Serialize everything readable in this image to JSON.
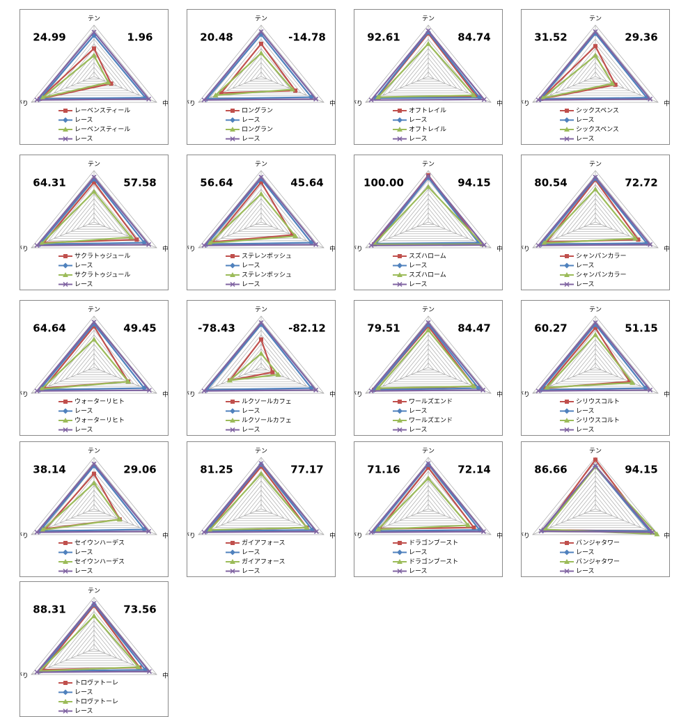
{
  "chart_data": [
    {
      "type": "radar",
      "annotations": [
        "24.99",
        "1.96"
      ],
      "categories": [
        "テン",
        "中盤",
        "上がり"
      ],
      "ylim": [
        0,
        110
      ],
      "yticks": [
        10,
        20,
        30,
        40,
        50,
        60,
        70,
        80,
        90,
        100,
        110
      ],
      "series": [
        {
          "name": "レーベンスティール",
          "color": "#c0504d",
          "marker": "square",
          "values": [
            60,
            30,
            95
          ]
        },
        {
          "name": "レース",
          "color": "#4f81bd",
          "marker": "diamond",
          "values": [
            88,
            90,
            95
          ]
        },
        {
          "name": "レーベンスティール",
          "color": "#9bbb59",
          "marker": "triangle",
          "values": [
            45,
            25,
            90
          ]
        },
        {
          "name": "レース",
          "color": "#8064a2",
          "marker": "x",
          "values": [
            95,
            96,
            100
          ]
        }
      ]
    },
    {
      "type": "radar",
      "annotations": [
        "20.48",
        "-14.78"
      ],
      "categories": [
        "テン",
        "中盤",
        "上がり"
      ],
      "ylim": [
        0,
        110
      ],
      "yticks": [
        10,
        20,
        30,
        40,
        50,
        60,
        70,
        80,
        90,
        100,
        110
      ],
      "series": [
        {
          "name": "ロングラン",
          "color": "#c0504d",
          "marker": "square",
          "values": [
            70,
            60,
            70
          ]
        },
        {
          "name": "レース",
          "color": "#4f81bd",
          "marker": "diamond",
          "values": [
            90,
            88,
            95
          ]
        },
        {
          "name": "ロングラン",
          "color": "#9bbb59",
          "marker": "triangle",
          "values": [
            50,
            55,
            80
          ]
        },
        {
          "name": "レース",
          "color": "#8064a2",
          "marker": "x",
          "values": [
            96,
            96,
            100
          ]
        }
      ]
    },
    {
      "type": "radar",
      "annotations": [
        "92.61",
        "84.74"
      ],
      "categories": [
        "テン",
        "中盤",
        "上がり"
      ],
      "ylim": [
        0,
        110
      ],
      "yticks": [
        10,
        20,
        30,
        40,
        50,
        60,
        70,
        80,
        90,
        100,
        110
      ],
      "series": [
        {
          "name": "オフトレイル",
          "color": "#c0504d",
          "marker": "square",
          "values": [
            92,
            85,
            90
          ]
        },
        {
          "name": "レース",
          "color": "#4f81bd",
          "marker": "diamond",
          "values": [
            95,
            90,
            92
          ]
        },
        {
          "name": "オフトレイル",
          "color": "#9bbb59",
          "marker": "triangle",
          "values": [
            70,
            80,
            88
          ]
        },
        {
          "name": "レース",
          "color": "#8064a2",
          "marker": "x",
          "values": [
            98,
            98,
            100
          ]
        }
      ]
    },
    {
      "type": "radar",
      "annotations": [
        "31.52",
        "29.36"
      ],
      "categories": [
        "テン",
        "中盤",
        "上がり"
      ],
      "ylim": [
        0,
        110
      ],
      "yticks": [
        10,
        20,
        30,
        40,
        50,
        60,
        70,
        80,
        90,
        100,
        110
      ],
      "series": [
        {
          "name": "シックスペンス",
          "color": "#c0504d",
          "marker": "square",
          "values": [
            65,
            35,
            95
          ]
        },
        {
          "name": "レース",
          "color": "#4f81bd",
          "marker": "diamond",
          "values": [
            92,
            90,
            96
          ]
        },
        {
          "name": "シックスペンス",
          "color": "#9bbb59",
          "marker": "triangle",
          "values": [
            45,
            30,
            92
          ]
        },
        {
          "name": "レース",
          "color": "#8064a2",
          "marker": "x",
          "values": [
            96,
            96,
            100
          ]
        }
      ]
    },
    {
      "type": "radar",
      "annotations": [
        "64.31",
        "57.58"
      ],
      "categories": [
        "テン",
        "中盤",
        "上がり"
      ],
      "ylim": [
        0,
        110
      ],
      "yticks": [
        10,
        20,
        30,
        40,
        50,
        60,
        70,
        80,
        90,
        100,
        110
      ],
      "series": [
        {
          "name": "サクラトゥジュール",
          "color": "#c0504d",
          "marker": "square",
          "values": [
            85,
            75,
            88
          ]
        },
        {
          "name": "レース",
          "color": "#4f81bd",
          "marker": "diamond",
          "values": [
            92,
            88,
            95
          ]
        },
        {
          "name": "サクラトゥジュール",
          "color": "#9bbb59",
          "marker": "triangle",
          "values": [
            65,
            65,
            92
          ]
        },
        {
          "name": "レース",
          "color": "#8064a2",
          "marker": "x",
          "values": [
            96,
            96,
            100
          ]
        }
      ]
    },
    {
      "type": "radar",
      "annotations": [
        "56.64",
        "45.64"
      ],
      "categories": [
        "テン",
        "中盤",
        "上がり"
      ],
      "ylim": [
        0,
        110
      ],
      "yticks": [
        10,
        20,
        30,
        40,
        50,
        60,
        70,
        80,
        90,
        100,
        110
      ],
      "series": [
        {
          "name": "ステレンボッシュ",
          "color": "#c0504d",
          "marker": "square",
          "values": [
            85,
            55,
            85
          ]
        },
        {
          "name": "レース",
          "color": "#4f81bd",
          "marker": "diamond",
          "values": [
            92,
            88,
            95
          ]
        },
        {
          "name": "ステレンボッシュ",
          "color": "#9bbb59",
          "marker": "triangle",
          "values": [
            60,
            60,
            90
          ]
        },
        {
          "name": "レース",
          "color": "#8064a2",
          "marker": "x",
          "values": [
            96,
            96,
            100
          ]
        }
      ]
    },
    {
      "type": "radar",
      "annotations": [
        "100.00",
        "94.15"
      ],
      "categories": [
        "テン",
        "中盤",
        "上がり"
      ],
      "ylim": [
        0,
        110
      ],
      "yticks": [
        10,
        20,
        30,
        40,
        50,
        60,
        70,
        80,
        90,
        100,
        110
      ],
      "series": [
        {
          "name": "スズハローム",
          "color": "#c0504d",
          "marker": "square",
          "values": [
            100,
            90,
            95
          ]
        },
        {
          "name": "レース",
          "color": "#4f81bd",
          "marker": "diamond",
          "values": [
            95,
            88,
            92
          ]
        },
        {
          "name": "スズハローム",
          "color": "#9bbb59",
          "marker": "triangle",
          "values": [
            75,
            95,
            95
          ]
        },
        {
          "name": "レース",
          "color": "#8064a2",
          "marker": "x",
          "values": [
            98,
            98,
            100
          ]
        }
      ]
    },
    {
      "type": "radar",
      "annotations": [
        "80.54",
        "72.72"
      ],
      "categories": [
        "テン",
        "中盤",
        "上がり"
      ],
      "ylim": [
        0,
        110
      ],
      "yticks": [
        10,
        20,
        30,
        40,
        50,
        60,
        70,
        80,
        90,
        100,
        110
      ],
      "series": [
        {
          "name": "シャンパンカラー",
          "color": "#c0504d",
          "marker": "square",
          "values": [
            90,
            75,
            85
          ]
        },
        {
          "name": "レース",
          "color": "#4f81bd",
          "marker": "diamond",
          "values": [
            93,
            90,
            95
          ]
        },
        {
          "name": "シャンパンカラー",
          "color": "#9bbb59",
          "marker": "triangle",
          "values": [
            70,
            70,
            90
          ]
        },
        {
          "name": "レース",
          "color": "#8064a2",
          "marker": "x",
          "values": [
            96,
            96,
            100
          ]
        }
      ]
    },
    {
      "type": "radar",
      "annotations": [
        "64.64",
        "49.45"
      ],
      "categories": [
        "テン",
        "中盤",
        "上がり"
      ],
      "ylim": [
        0,
        110
      ],
      "yticks": [
        10,
        20,
        30,
        40,
        50,
        60,
        70,
        80,
        90,
        100,
        110
      ],
      "series": [
        {
          "name": "ウォーターリヒト",
          "color": "#c0504d",
          "marker": "square",
          "values": [
            88,
            60,
            88
          ]
        },
        {
          "name": "レース",
          "color": "#4f81bd",
          "marker": "diamond",
          "values": [
            93,
            88,
            95
          ]
        },
        {
          "name": "ウォーターリヒト",
          "color": "#9bbb59",
          "marker": "triangle",
          "values": [
            60,
            60,
            92
          ]
        },
        {
          "name": "レース",
          "color": "#8064a2",
          "marker": "x",
          "values": [
            97,
            97,
            100
          ]
        }
      ]
    },
    {
      "type": "radar",
      "annotations": [
        "-78.43",
        "-82.12"
      ],
      "categories": [
        "テン",
        "中盤",
        "上がり"
      ],
      "ylim": [
        0,
        110
      ],
      "yticks": [
        10,
        20,
        30,
        40,
        50,
        60,
        70,
        80,
        90,
        100,
        110
      ],
      "series": [
        {
          "name": "ルクソールカフェ",
          "color": "#c0504d",
          "marker": "square",
          "values": [
            60,
            20,
            55
          ]
        },
        {
          "name": "レース",
          "color": "#4f81bd",
          "marker": "diamond",
          "values": [
            92,
            88,
            95
          ]
        },
        {
          "name": "ルクソールカフェ",
          "color": "#9bbb59",
          "marker": "triangle",
          "values": [
            30,
            30,
            55
          ]
        },
        {
          "name": "レース",
          "color": "#8064a2",
          "marker": "x",
          "values": [
            96,
            96,
            100
          ]
        }
      ]
    },
    {
      "type": "radar",
      "annotations": [
        "79.51",
        "84.47"
      ],
      "categories": [
        "テン",
        "中盤",
        "上がり"
      ],
      "ylim": [
        0,
        110
      ],
      "yticks": [
        10,
        20,
        30,
        40,
        50,
        60,
        70,
        80,
        90,
        100,
        110
      ],
      "series": [
        {
          "name": "ワールズエンド",
          "color": "#c0504d",
          "marker": "square",
          "values": [
            88,
            80,
            95
          ]
        },
        {
          "name": "レース",
          "color": "#4f81bd",
          "marker": "diamond",
          "values": [
            92,
            88,
            95
          ]
        },
        {
          "name": "ワールズエンド",
          "color": "#9bbb59",
          "marker": "triangle",
          "values": [
            80,
            80,
            88
          ]
        },
        {
          "name": "レース",
          "color": "#8064a2",
          "marker": "x",
          "values": [
            96,
            96,
            100
          ]
        }
      ]
    },
    {
      "type": "radar",
      "annotations": [
        "60.27",
        "51.15"
      ],
      "categories": [
        "テン",
        "中盤",
        "上がり"
      ],
      "ylim": [
        0,
        110
      ],
      "yticks": [
        10,
        20,
        30,
        40,
        50,
        60,
        70,
        80,
        90,
        100,
        110
      ],
      "series": [
        {
          "name": "シリウスコルト",
          "color": "#c0504d",
          "marker": "square",
          "values": [
            85,
            60,
            88
          ]
        },
        {
          "name": "レース",
          "color": "#4f81bd",
          "marker": "diamond",
          "values": [
            92,
            88,
            95
          ]
        },
        {
          "name": "シリウスコルト",
          "color": "#9bbb59",
          "marker": "triangle",
          "values": [
            70,
            65,
            85
          ]
        },
        {
          "name": "レース",
          "color": "#8064a2",
          "marker": "x",
          "values": [
            96,
            96,
            100
          ]
        }
      ]
    },
    {
      "type": "radar",
      "annotations": [
        "38.14",
        "29.06"
      ],
      "categories": [
        "テン",
        "中盤",
        "上がり"
      ],
      "ylim": [
        0,
        110
      ],
      "yticks": [
        10,
        20,
        30,
        40,
        50,
        60,
        70,
        80,
        90,
        100,
        110
      ],
      "series": [
        {
          "name": "セイウンハーデス",
          "color": "#c0504d",
          "marker": "square",
          "values": [
            75,
            45,
            85
          ]
        },
        {
          "name": "レース",
          "color": "#4f81bd",
          "marker": "diamond",
          "values": [
            92,
            88,
            95
          ]
        },
        {
          "name": "セイウンハーデス",
          "color": "#9bbb59",
          "marker": "triangle",
          "values": [
            55,
            45,
            90
          ]
        },
        {
          "name": "レース",
          "color": "#8064a2",
          "marker": "x",
          "values": [
            96,
            96,
            100
          ]
        }
      ]
    },
    {
      "type": "radar",
      "annotations": [
        "81.25",
        "77.17"
      ],
      "categories": [
        "テン",
        "中盤",
        "上がり"
      ],
      "ylim": [
        0,
        110
      ],
      "yticks": [
        10,
        20,
        30,
        40,
        50,
        60,
        70,
        80,
        90,
        100,
        110
      ],
      "series": [
        {
          "name": "ガイアフォース",
          "color": "#c0504d",
          "marker": "square",
          "values": [
            90,
            80,
            92
          ]
        },
        {
          "name": "レース",
          "color": "#4f81bd",
          "marker": "diamond",
          "values": [
            95,
            90,
            95
          ]
        },
        {
          "name": "ガイアフォース",
          "color": "#9bbb59",
          "marker": "triangle",
          "values": [
            75,
            80,
            90
          ]
        },
        {
          "name": "レース",
          "color": "#8064a2",
          "marker": "x",
          "values": [
            97,
            97,
            100
          ]
        }
      ]
    },
    {
      "type": "radar",
      "annotations": [
        "71.16",
        "72.14"
      ],
      "categories": [
        "テン",
        "中盤",
        "上がり"
      ],
      "ylim": [
        0,
        110
      ],
      "yticks": [
        10,
        20,
        30,
        40,
        50,
        60,
        70,
        80,
        90,
        100,
        110
      ],
      "series": [
        {
          "name": "ドラゴンブースト",
          "color": "#c0504d",
          "marker": "square",
          "values": [
            88,
            80,
            85
          ]
        },
        {
          "name": "レース",
          "color": "#4f81bd",
          "marker": "diamond",
          "values": [
            95,
            90,
            95
          ]
        },
        {
          "name": "ドラゴンブースト",
          "color": "#9bbb59",
          "marker": "triangle",
          "values": [
            65,
            70,
            88
          ]
        },
        {
          "name": "レース",
          "color": "#8064a2",
          "marker": "x",
          "values": [
            97,
            97,
            100
          ]
        }
      ]
    },
    {
      "type": "radar",
      "annotations": [
        "86.66",
        "94.15"
      ],
      "categories": [
        "テン",
        "中盤",
        "上がり"
      ],
      "ylim": [
        0,
        110
      ],
      "yticks": [
        10,
        20,
        30,
        40,
        50,
        60,
        70,
        80,
        90,
        100,
        110
      ],
      "series": [
        {
          "name": "バンジャタワー",
          "color": "#c0504d",
          "marker": "square",
          "values": [
            105,
            95,
            90
          ]
        },
        {
          "name": "レース",
          "color": "#4f81bd",
          "marker": "diamond",
          "values": [
            90,
            95,
            92
          ]
        },
        {
          "name": "バンジャタワー",
          "color": "#9bbb59",
          "marker": "triangle",
          "values": [
            90,
            108,
            88
          ]
        },
        {
          "name": "レース",
          "color": "#8064a2",
          "marker": "x",
          "values": [
            92,
            100,
            95
          ]
        }
      ]
    },
    {
      "type": "radar",
      "annotations": [
        "88.31",
        "73.56"
      ],
      "categories": [
        "テン",
        "中盤",
        "上がり"
      ],
      "ylim": [
        0,
        110
      ],
      "yticks": [
        10,
        20,
        30,
        40,
        50,
        60,
        70,
        80,
        90,
        100,
        110
      ],
      "series": [
        {
          "name": "トロヴァトーレ",
          "color": "#c0504d",
          "marker": "square",
          "values": [
            92,
            80,
            90
          ]
        },
        {
          "name": "レース",
          "color": "#4f81bd",
          "marker": "diamond",
          "values": [
            95,
            90,
            95
          ]
        },
        {
          "name": "トロヴァトーレ",
          "color": "#9bbb59",
          "marker": "triangle",
          "values": [
            70,
            78,
            95
          ]
        },
        {
          "name": "レース",
          "color": "#8064a2",
          "marker": "x",
          "values": [
            97,
            97,
            100
          ]
        }
      ]
    }
  ]
}
